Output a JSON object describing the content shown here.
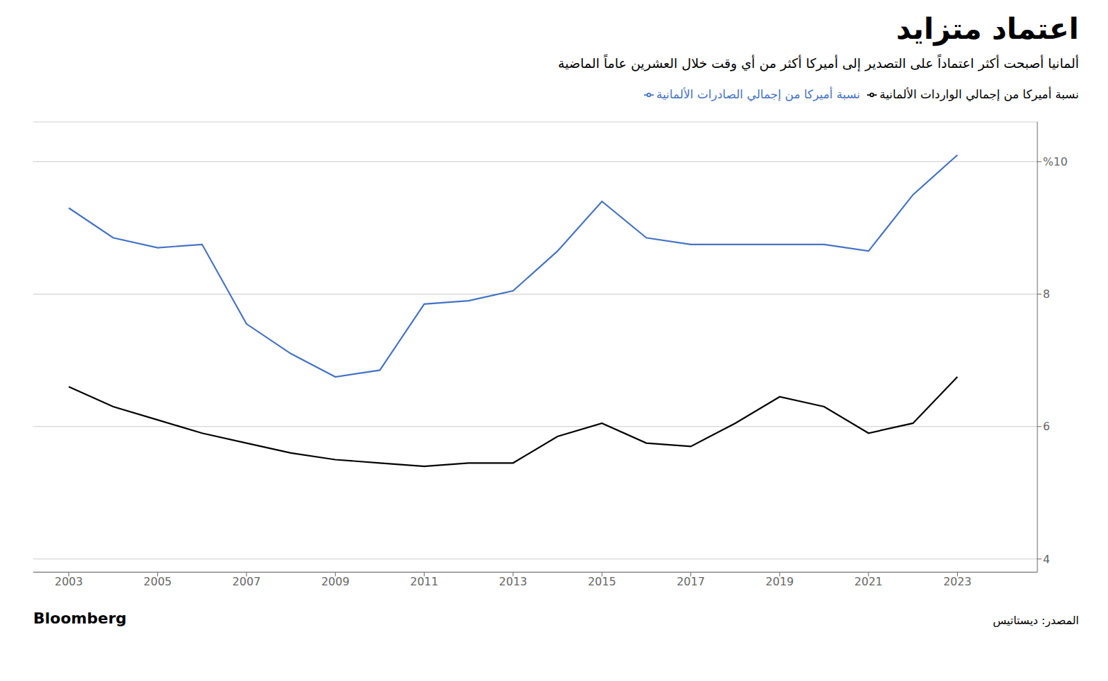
{
  "chart_data": {
    "type": "line",
    "title": "اعتماد متزايد",
    "subtitle": "ألمانيا أصبحت أكثر اعتماداً على التصدير إلى أميركا أكثر من أي وقت خلال العشرين عاماً الماضية",
    "annotations": [
      "Bloomberg",
      "المصدر: ديستاتيس"
    ],
    "x": [
      2003,
      2004,
      2005,
      2006,
      2007,
      2008,
      2009,
      2010,
      2011,
      2012,
      2013,
      2014,
      2015,
      2016,
      2017,
      2018,
      2019,
      2020,
      2021,
      2022,
      2023
    ],
    "series": [
      {
        "name": "نسبة أميركا من إجمالي الصادرات الألمانية",
        "color": "#4472C4",
        "values": [
          9.3,
          8.85,
          8.7,
          8.75,
          7.55,
          7.1,
          6.75,
          6.85,
          7.85,
          7.9,
          8.05,
          8.65,
          9.4,
          8.85,
          8.75,
          8.75,
          8.75,
          8.75,
          8.65,
          9.5,
          10.1
        ]
      },
      {
        "name": "نسبة أميركا من إجمالي الواردات الألمانية",
        "color": "#000000",
        "values": [
          6.6,
          6.3,
          6.1,
          5.9,
          5.75,
          5.6,
          5.5,
          5.45,
          5.4,
          5.45,
          5.45,
          5.85,
          6.05,
          5.75,
          5.7,
          6.05,
          6.45,
          6.3,
          5.9,
          6.05,
          6.75
        ]
      }
    ],
    "xlim": [
      2002.2,
      2024.8
    ],
    "xticks": [
      2003,
      2005,
      2007,
      2009,
      2011,
      2013,
      2015,
      2017,
      2019,
      2021,
      2023
    ],
    "ylim": [
      3.8,
      10.6
    ],
    "yticks": [
      4,
      6,
      8,
      {
        "value": 10,
        "label": "%10"
      }
    ],
    "grid": true,
    "legend": "top"
  }
}
